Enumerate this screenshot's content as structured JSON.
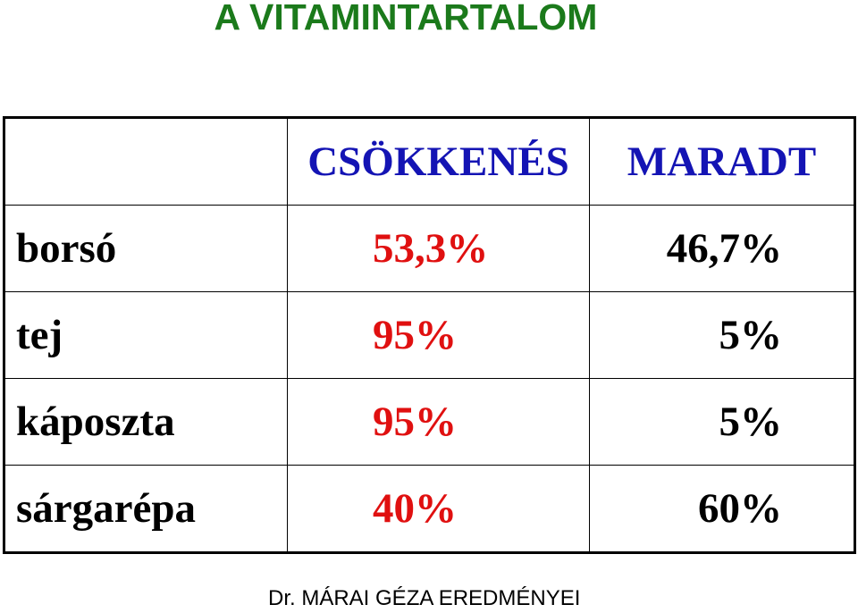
{
  "header": {
    "title": "A VITAMINTARTALOM"
  },
  "table": {
    "columns": [
      "CSÖKKENÉS",
      "MARADT"
    ],
    "rows": [
      [
        "borsó",
        "53,3%",
        "46,7%"
      ],
      [
        "tej",
        "95%",
        "5%"
      ],
      [
        "káposzta",
        "95%",
        "5%"
      ],
      [
        "sárgarépa",
        "40%",
        "60%"
      ]
    ]
  },
  "footer": {
    "text": "Dr. MÁRAI GÉZA EREDMÉNYEI"
  }
}
